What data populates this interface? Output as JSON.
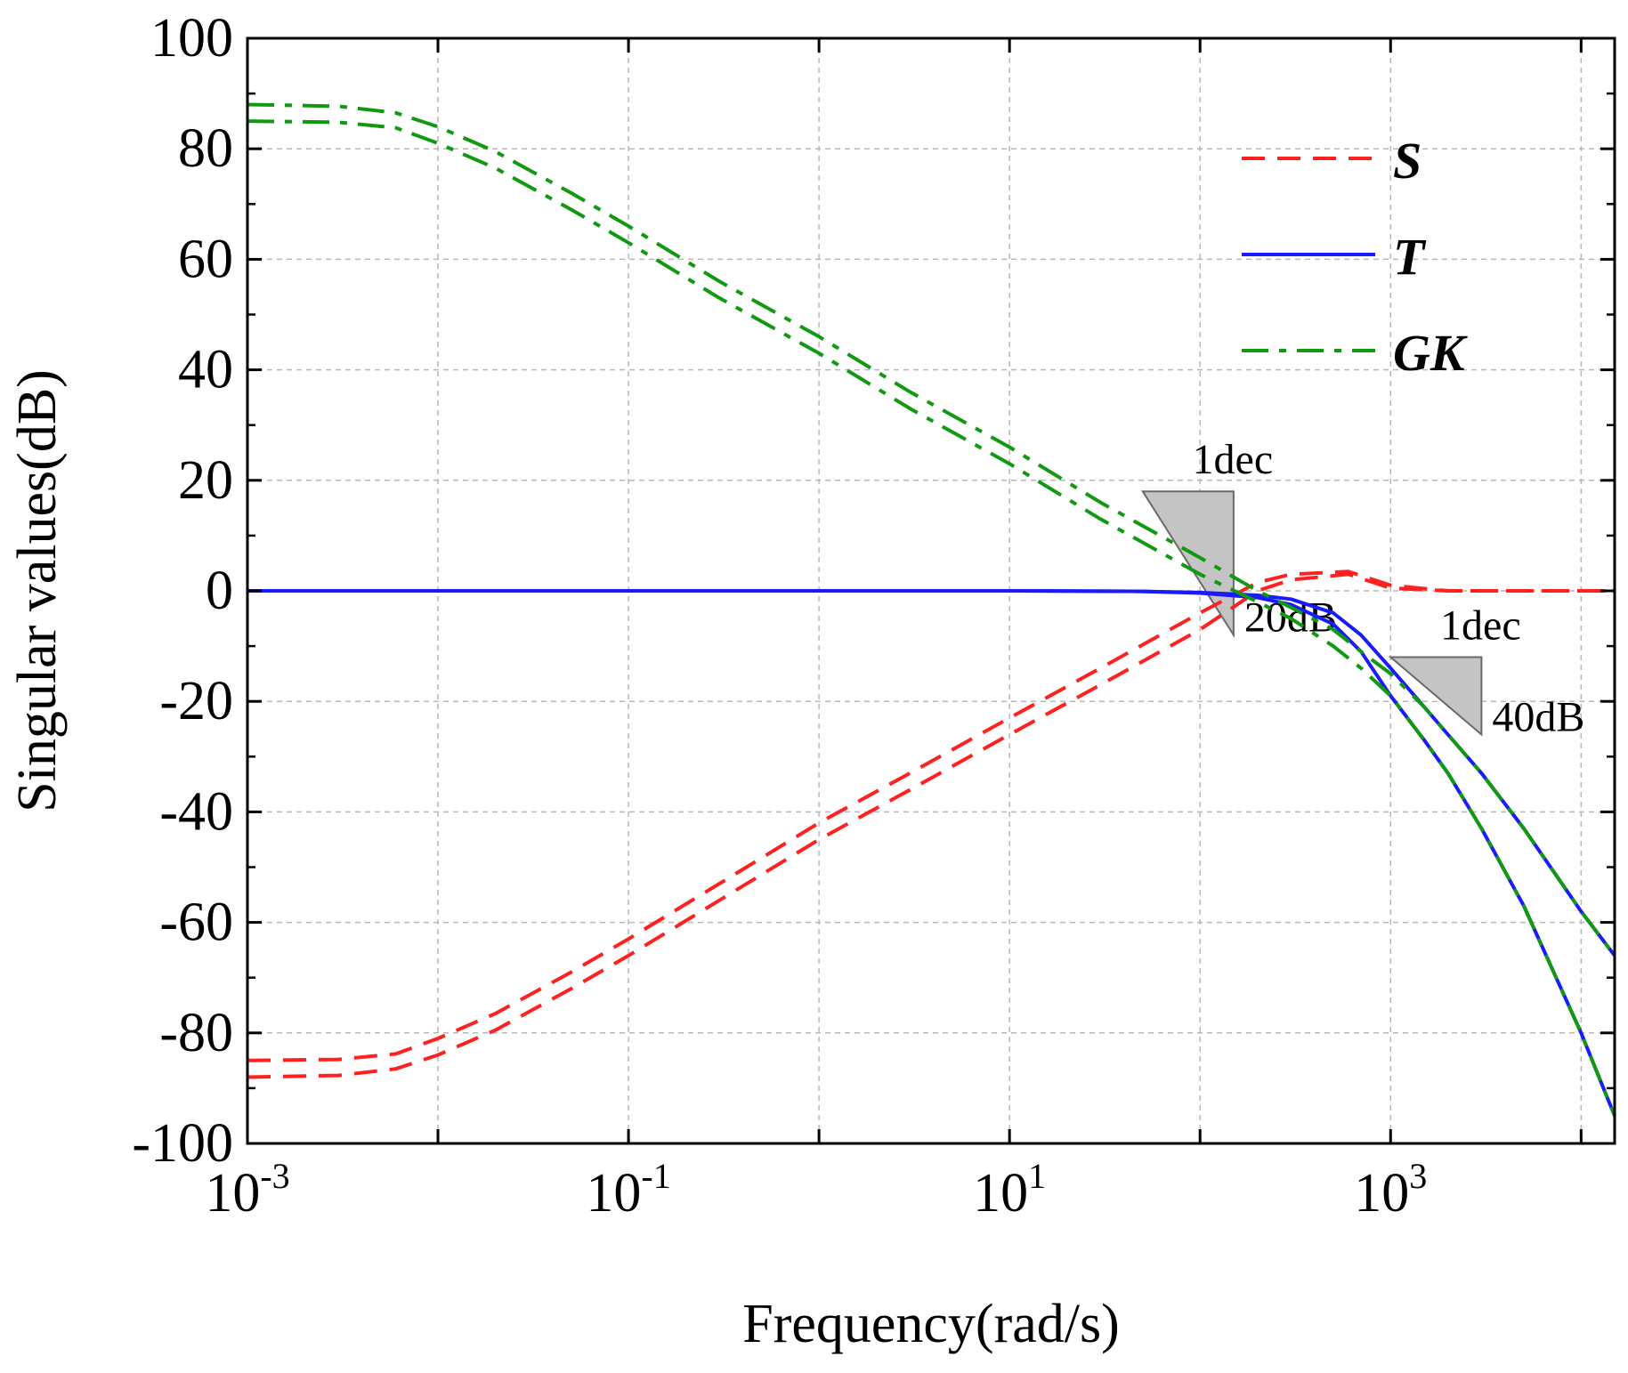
{
  "chart_data": {
    "type": "line",
    "xscale": "log",
    "xlim": [
      0.001,
      15000
    ],
    "ylim": [
      -100,
      100
    ],
    "xlabel": "Frequency(rad/s)",
    "ylabel": "Singular values(dB)",
    "grid": true,
    "legend_position": "top-right",
    "x_ticks": [
      {
        "value": 0.001,
        "base": "10",
        "exp": "-3"
      },
      {
        "value": 0.1,
        "base": "10",
        "exp": "-1"
      },
      {
        "value": 10,
        "base": "10",
        "exp": "1"
      },
      {
        "value": 1000,
        "base": "10",
        "exp": "3"
      }
    ],
    "y_ticks": [
      {
        "value": 100,
        "label": "100"
      },
      {
        "value": 80,
        "label": "80"
      },
      {
        "value": 60,
        "label": "60"
      },
      {
        "value": 40,
        "label": "40"
      },
      {
        "value": 20,
        "label": "20"
      },
      {
        "value": 0,
        "label": "0"
      },
      {
        "value": -20,
        "label": "-20"
      },
      {
        "value": -40,
        "label": "-40"
      },
      {
        "value": -60,
        "label": "-60"
      },
      {
        "value": -80,
        "label": "-80"
      },
      {
        "value": -100,
        "label": "-100"
      }
    ],
    "legend": [
      {
        "label": "S",
        "color": "#ff2020",
        "style": "dashed"
      },
      {
        "label": "T",
        "color": "#1a1aff",
        "style": "solid"
      },
      {
        "label": "GK",
        "color": "#119911",
        "style": "dashdot"
      }
    ],
    "series": [
      {
        "legend_index": 0,
        "color": "#ff2020",
        "style": "dashed",
        "x": [
          0.001,
          0.003,
          0.006,
          0.01,
          0.02,
          0.05,
          0.1,
          0.3,
          1,
          3,
          10,
          30,
          100,
          200,
          300,
          600,
          1000,
          2000,
          15000
        ],
        "y": [
          -85,
          -84.8,
          -83.8,
          -81,
          -76.5,
          -69,
          -63,
          -53,
          -42,
          -33,
          -23,
          -14,
          -4,
          1.5,
          3,
          3.5,
          1,
          0,
          0
        ]
      },
      {
        "legend_index": 0,
        "color": "#ff2020",
        "style": "dashed",
        "x": [
          0.001,
          0.003,
          0.006,
          0.01,
          0.02,
          0.05,
          0.1,
          0.3,
          1,
          3,
          10,
          30,
          100,
          200,
          300,
          600,
          1000,
          2000,
          15000
        ],
        "y": [
          -88,
          -87.7,
          -86.5,
          -84,
          -79.5,
          -72,
          -66,
          -56,
          -45,
          -36,
          -26,
          -17,
          -7,
          0,
          2,
          3,
          0.5,
          0,
          0
        ]
      },
      {
        "legend_index": 1,
        "color": "#1a1aff",
        "style": "solid",
        "x": [
          0.001,
          1,
          10,
          50,
          100,
          200,
          300,
          500,
          700,
          1000,
          1500,
          2000,
          3000,
          5000,
          10000,
          15000
        ],
        "y": [
          0,
          0,
          0,
          -0.1,
          -0.3,
          -0.8,
          -1.5,
          -4,
          -8,
          -14,
          -21,
          -26,
          -33,
          -43,
          -58,
          -66
        ]
      },
      {
        "legend_index": 1,
        "color": "#1a1aff",
        "style": "solid",
        "x": [
          0.001,
          1,
          10,
          50,
          100,
          200,
          300,
          500,
          700,
          1000,
          1500,
          2000,
          3000,
          5000,
          10000,
          15000
        ],
        "y": [
          0,
          0,
          0,
          -0.1,
          -0.4,
          -1.2,
          -2.5,
          -6,
          -11,
          -19,
          -27,
          -33,
          -43,
          -57,
          -80,
          -95
        ]
      },
      {
        "legend_index": 2,
        "color": "#119911",
        "style": "dashdot",
        "x": [
          0.001,
          0.003,
          0.006,
          0.01,
          0.02,
          0.05,
          0.1,
          0.3,
          1,
          3,
          10,
          30,
          100,
          200,
          300,
          500,
          700,
          1000,
          1500,
          2000,
          3000,
          5000,
          10000,
          15000
        ],
        "y": [
          88,
          87.7,
          86.5,
          84,
          79.5,
          72,
          66,
          56,
          46,
          36,
          26,
          16,
          6,
          0,
          -3,
          -7,
          -11,
          -15,
          -21,
          -26,
          -33,
          -43,
          -58,
          -66
        ]
      },
      {
        "legend_index": 2,
        "color": "#119911",
        "style": "dashdot",
        "x": [
          0.001,
          0.003,
          0.006,
          0.01,
          0.02,
          0.05,
          0.1,
          0.3,
          1,
          3,
          10,
          30,
          100,
          200,
          300,
          500,
          700,
          1000,
          1500,
          2000,
          3000,
          5000,
          10000,
          15000
        ],
        "y": [
          85,
          84.8,
          83.8,
          81,
          76.5,
          69,
          63,
          53,
          43,
          33,
          23,
          13,
          3,
          -2,
          -5,
          -10,
          -14,
          -19,
          -27,
          -33,
          -43,
          -57,
          -80,
          -95
        ]
      }
    ],
    "annotations": [
      {
        "name": "slope-20db",
        "top_label": "1dec",
        "side_label": "20dB",
        "x_start": 50,
        "x_end": 150,
        "y_top": 18,
        "y_bottom": -8
      },
      {
        "name": "slope-40db",
        "top_label": "1dec",
        "side_label": "40dB",
        "x_start": 1000,
        "x_end": 3000,
        "y_top": -12,
        "y_bottom": -26
      }
    ]
  }
}
